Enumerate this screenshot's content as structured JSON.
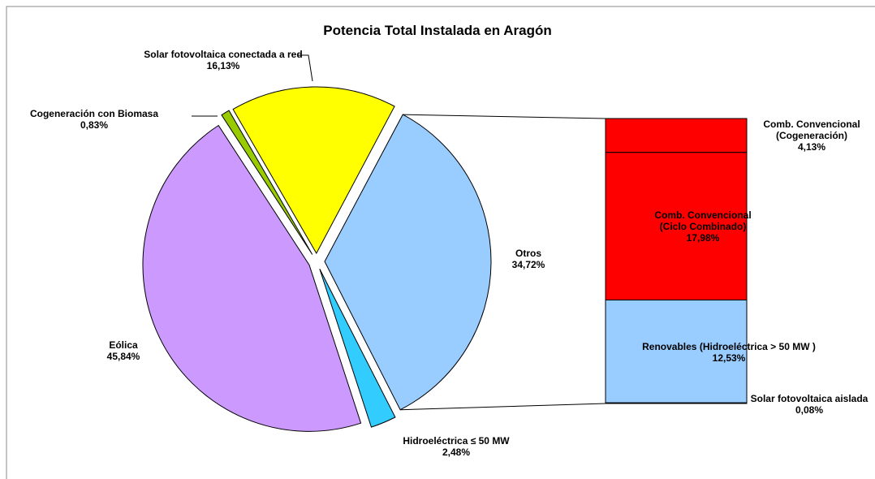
{
  "chart_data": {
    "type": "pie-of-bar",
    "title": "Potencia Total Instalada en Aragón",
    "categories": [
      "Otros",
      "Hidroeléctrica ≤ 50 MW",
      "Eólica",
      "Cogeneración con Biomasa",
      "Solar fotovoltaica conectada a red"
    ],
    "values": [
      34.72,
      2.48,
      45.84,
      0.83,
      16.13
    ],
    "value_labels": [
      "34,72%",
      "2,48%",
      "45,84%",
      "0,83%",
      "16,13%"
    ],
    "colors": [
      "#99ccff",
      "#33ccff",
      "#cc99ff",
      "#99cc00",
      "#ffff00"
    ],
    "breakdown": {
      "categories": [
        "Comb. Convencional (Cogeneración)",
        "Comb. Convencional (Ciclo Combinado)",
        "Renovables (Hidroeléctrica > 50 MW )",
        "Solar fotovoltaica aislada"
      ],
      "values": [
        4.13,
        17.98,
        12.53,
        0.08
      ],
      "value_labels": [
        "4,13%",
        "17,98%",
        "12,53%",
        "0,08%"
      ],
      "colors": [
        "#ff0000",
        "#ff0000",
        "#99ccff",
        "#cc99ff"
      ]
    }
  }
}
